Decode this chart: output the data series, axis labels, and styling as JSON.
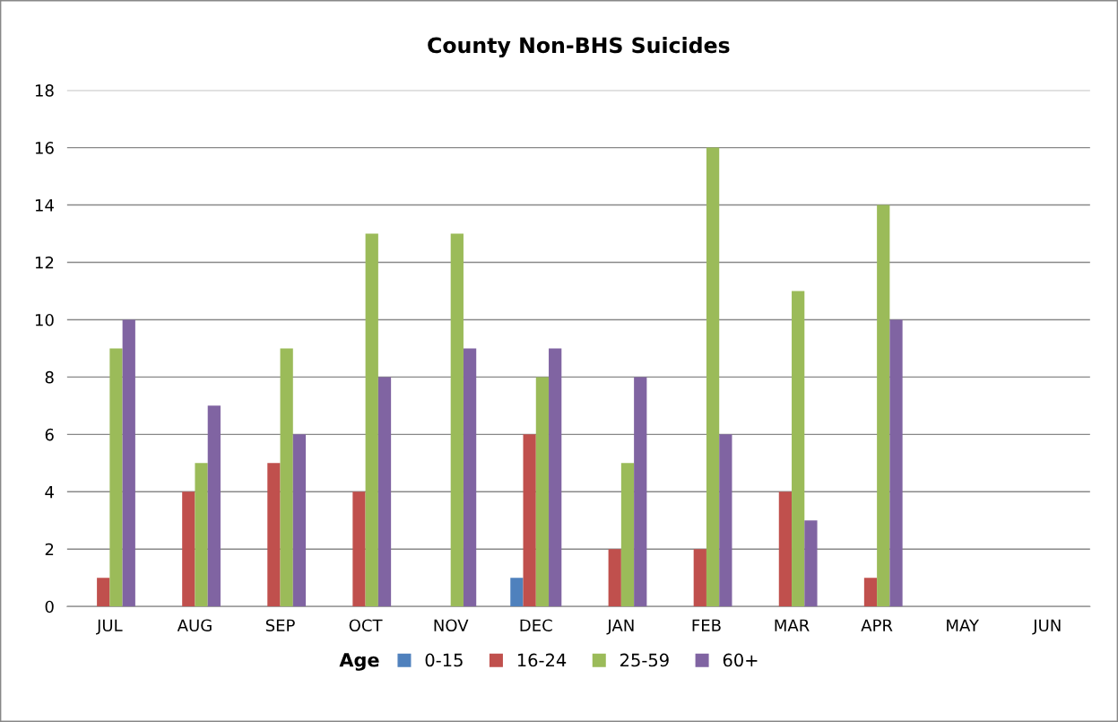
{
  "chart_data": {
    "type": "bar",
    "title": "County Non-BHS Suicides",
    "categories": [
      "JUL",
      "AUG",
      "SEP",
      "OCT",
      "NOV",
      "DEC",
      "JAN",
      "FEB",
      "MAR",
      "APR",
      "MAY",
      "JUN"
    ],
    "series": [
      {
        "name": "0-15",
        "color": "#4f81bd",
        "values": [
          0,
          0,
          0,
          0,
          0,
          1,
          0,
          0,
          0,
          0,
          null,
          null
        ]
      },
      {
        "name": "16-24",
        "color": "#c0504d",
        "values": [
          1,
          4,
          5,
          4,
          0,
          6,
          2,
          2,
          4,
          1,
          null,
          null
        ]
      },
      {
        "name": "25-59",
        "color": "#9bbb59",
        "values": [
          9,
          5,
          9,
          13,
          13,
          8,
          5,
          16,
          11,
          14,
          null,
          null
        ]
      },
      {
        "name": "60+",
        "color": "#8064a2",
        "values": [
          10,
          7,
          6,
          8,
          9,
          9,
          8,
          6,
          3,
          10,
          null,
          null
        ]
      }
    ],
    "legend_title": "Age",
    "legend": "bottom",
    "ylim": [
      0,
      18
    ],
    "yticks": [
      0,
      2,
      4,
      6,
      8,
      10,
      12,
      14,
      16,
      18
    ],
    "grid": "y"
  }
}
